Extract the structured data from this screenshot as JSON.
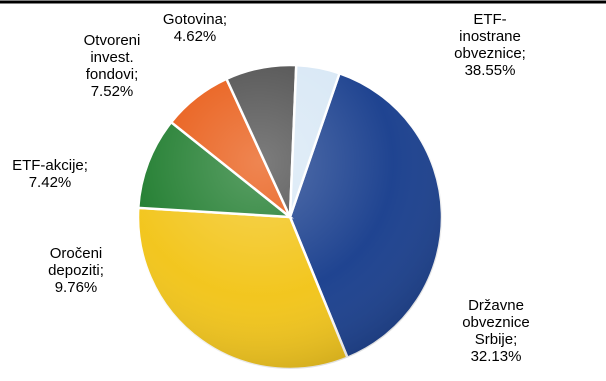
{
  "chart_data": {
    "type": "pie",
    "title": "",
    "slices": [
      {
        "label_lines": [
          "ETF-",
          "inostrane",
          "obveznice;",
          "38.55%"
        ],
        "label": "ETF-inostrane obveznice",
        "value": 38.55,
        "color": "#163c8c"
      },
      {
        "label_lines": [
          "Državne",
          "obveznice",
          "Srbije;",
          "32.13%"
        ],
        "label": "Državne obveznice Srbije",
        "value": 32.13,
        "color": "#f2c416"
      },
      {
        "label_lines": [
          "Oročeni",
          "depoziti;",
          "9.76%"
        ],
        "label": "Oročeni depoziti",
        "value": 9.76,
        "color": "#1b7a2a"
      },
      {
        "label_lines": [
          "ETF-akcije;",
          "7.42%"
        ],
        "label": "ETF-akcije",
        "value": 7.42,
        "color": "#e8560e"
      },
      {
        "label_lines": [
          "Otvoreni",
          "invest.",
          "fondovi;",
          "7.52%"
        ],
        "label": "Otvoreni invest. fondovi",
        "value": 7.52,
        "color": "#4a4a4a"
      },
      {
        "label_lines": [
          "Gotovina;",
          "4.62%"
        ],
        "label": "Gotovina",
        "value": 4.62,
        "color": "#d7e7f5"
      }
    ]
  }
}
